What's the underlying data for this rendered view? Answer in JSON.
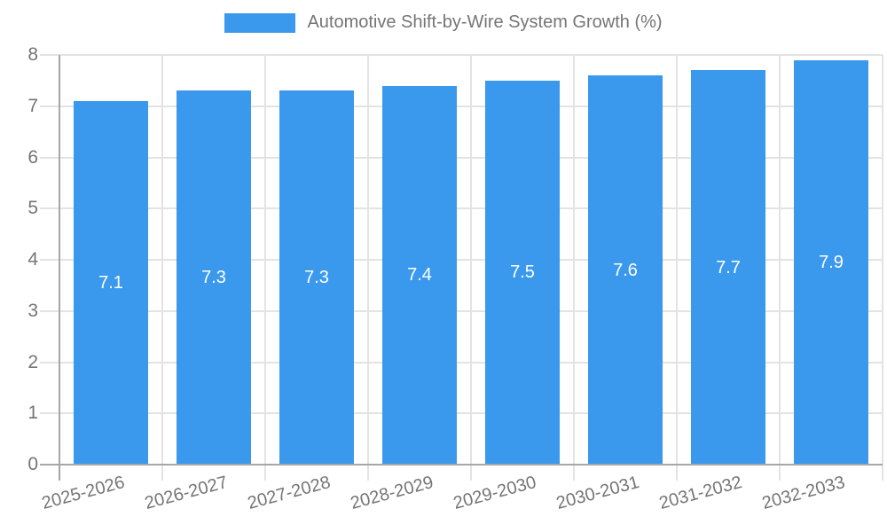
{
  "chart_data": {
    "type": "bar",
    "title": "Automotive Shift-by-Wire System Growth (%)",
    "categories": [
      "2025-2026",
      "2026-2027",
      "2027-2028",
      "2028-2029",
      "2029-2030",
      "2030-2031",
      "2031-2032",
      "2032-2033"
    ],
    "values": [
      7.1,
      7.3,
      7.3,
      7.4,
      7.5,
      7.6,
      7.7,
      7.9
    ],
    "value_labels": [
      "7.1",
      "7.3",
      "7.3",
      "7.4",
      "7.5",
      "7.6",
      "7.7",
      "7.9"
    ],
    "xlabel": "",
    "ylabel": "",
    "ylim": [
      0,
      8
    ],
    "y_ticks": [
      "0",
      "1",
      "2",
      "3",
      "4",
      "5",
      "6",
      "7",
      "8"
    ],
    "grid": true,
    "legend_position": "top"
  },
  "colors": {
    "bar": "#3B99ED",
    "grid": "#E3E3E3",
    "axis": "#A6A6A6",
    "tick_text": "#757575",
    "bar_label_text": "#FFFFFF"
  }
}
